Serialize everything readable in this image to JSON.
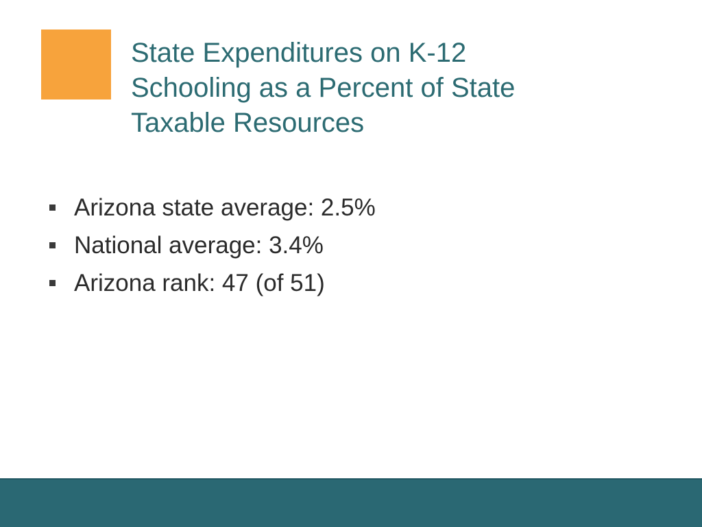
{
  "colors": {
    "accent": "#f7a33c",
    "title": "#2c6b72",
    "bullet_marker": "#3a3a3a",
    "footer": "#2a6873"
  },
  "title": {
    "lines": [
      "State Expenditures on K-12",
      "Schooling as a Percent of State",
      "Taxable Resources"
    ]
  },
  "bullets": [
    {
      "text": "Arizona state average: 2.5%",
      "icon": "square-bullet-icon"
    },
    {
      "text": "National average: 3.4%",
      "icon": "square-bullet-icon"
    },
    {
      "text": "Arizona rank: 47 (of 51)",
      "icon": "square-bullet-icon"
    }
  ]
}
